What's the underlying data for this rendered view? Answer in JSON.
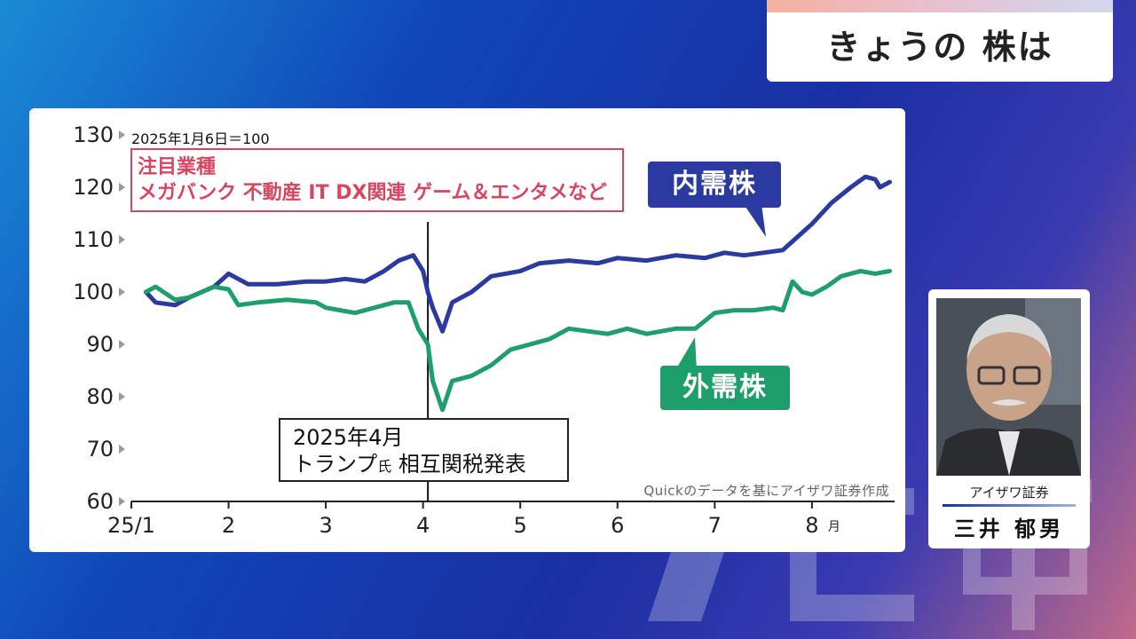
{
  "header": {
    "title": "きょうの 株は"
  },
  "chart_data": {
    "type": "line",
    "base_note": "2025年1月6日＝100",
    "y_ticks": [
      "130",
      "120",
      "110",
      "100",
      "90",
      "80",
      "70",
      "60"
    ],
    "ylim": [
      60,
      130
    ],
    "x_ticks": [
      "25/1",
      "2",
      "3",
      "4",
      "5",
      "6",
      "7",
      "8"
    ],
    "x_unit": "月",
    "annotation_sectors": {
      "line1": "注目業種",
      "line2": "メガバンク 不動産 IT DX関連 ゲーム＆エンタメなど"
    },
    "annotation_event": {
      "line1": "2025年4月",
      "line2a": "トランプ",
      "line2b": "氏",
      "line2c": " 相互関税発表",
      "x": 4.05
    },
    "source": "Quickのデータを基にアイザワ証券作成",
    "series": [
      {
        "name": "内需株",
        "color": "#2b3aa0",
        "points": [
          [
            1.15,
            100
          ],
          [
            1.25,
            98
          ],
          [
            1.45,
            97.5
          ],
          [
            1.6,
            99
          ],
          [
            1.85,
            101
          ],
          [
            2.0,
            103.5
          ],
          [
            2.2,
            101.5
          ],
          [
            2.5,
            101.5
          ],
          [
            2.8,
            102
          ],
          [
            3.0,
            102
          ],
          [
            3.2,
            102.5
          ],
          [
            3.4,
            102
          ],
          [
            3.6,
            104
          ],
          [
            3.75,
            106
          ],
          [
            3.9,
            107
          ],
          [
            4.0,
            104
          ],
          [
            4.05,
            100
          ],
          [
            4.1,
            97
          ],
          [
            4.2,
            92.5
          ],
          [
            4.3,
            98
          ],
          [
            4.5,
            100
          ],
          [
            4.7,
            103
          ],
          [
            5.0,
            104
          ],
          [
            5.2,
            105.5
          ],
          [
            5.5,
            106
          ],
          [
            5.8,
            105.5
          ],
          [
            6.0,
            106.5
          ],
          [
            6.3,
            106
          ],
          [
            6.6,
            107
          ],
          [
            6.9,
            106.5
          ],
          [
            7.1,
            107.5
          ],
          [
            7.3,
            107
          ],
          [
            7.5,
            107.5
          ],
          [
            7.7,
            108
          ],
          [
            7.85,
            110.5
          ],
          [
            8.0,
            113
          ],
          [
            8.2,
            117
          ],
          [
            8.4,
            120
          ],
          [
            8.55,
            122
          ],
          [
            8.65,
            121.5
          ],
          [
            8.7,
            120
          ],
          [
            8.8,
            121
          ]
        ]
      },
      {
        "name": "外需株",
        "color": "#1e9e6a",
        "points": [
          [
            1.15,
            100
          ],
          [
            1.25,
            101
          ],
          [
            1.45,
            98.5
          ],
          [
            1.6,
            99
          ],
          [
            1.85,
            101
          ],
          [
            2.0,
            100.5
          ],
          [
            2.1,
            97.5
          ],
          [
            2.3,
            98
          ],
          [
            2.6,
            98.5
          ],
          [
            2.9,
            98
          ],
          [
            3.0,
            97
          ],
          [
            3.3,
            96
          ],
          [
            3.5,
            97
          ],
          [
            3.7,
            98
          ],
          [
            3.85,
            98
          ],
          [
            3.95,
            93
          ],
          [
            4.05,
            90
          ],
          [
            4.1,
            83
          ],
          [
            4.2,
            77.5
          ],
          [
            4.3,
            83
          ],
          [
            4.5,
            84
          ],
          [
            4.7,
            86
          ],
          [
            4.9,
            89
          ],
          [
            5.1,
            90
          ],
          [
            5.3,
            91
          ],
          [
            5.5,
            93
          ],
          [
            5.7,
            92.5
          ],
          [
            5.9,
            92
          ],
          [
            6.1,
            93
          ],
          [
            6.3,
            92
          ],
          [
            6.6,
            93
          ],
          [
            6.8,
            93
          ],
          [
            7.0,
            96
          ],
          [
            7.2,
            96.5
          ],
          [
            7.4,
            96.5
          ],
          [
            7.6,
            97
          ],
          [
            7.7,
            96.5
          ],
          [
            7.8,
            102
          ],
          [
            7.9,
            100
          ],
          [
            8.0,
            99.5
          ],
          [
            8.15,
            101
          ],
          [
            8.3,
            103
          ],
          [
            8.5,
            104
          ],
          [
            8.65,
            103.5
          ],
          [
            8.8,
            104
          ]
        ]
      }
    ]
  },
  "profile": {
    "firm": "アイザワ証券",
    "name": "三井 郁男"
  }
}
